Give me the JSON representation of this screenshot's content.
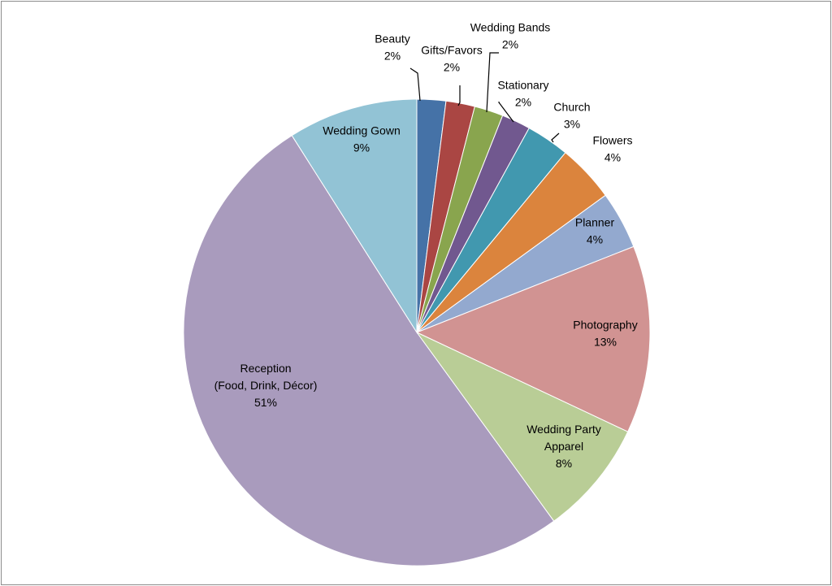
{
  "chart_data": {
    "type": "pie",
    "title": "",
    "start_angle": "12 o'clock",
    "direction": "clockwise",
    "slices": [
      {
        "name": "Beauty",
        "label_lines": [
          "Beauty",
          "2%"
        ],
        "value": 2,
        "percent_label": "2%",
        "color": "#4572a7"
      },
      {
        "name": "Gifts/Favors",
        "label_lines": [
          "Gifts/Favors",
          "2%"
        ],
        "value": 2,
        "percent_label": "2%",
        "color": "#aa4643"
      },
      {
        "name": "Wedding Bands",
        "label_lines": [
          "Wedding Bands",
          "2%"
        ],
        "value": 2,
        "percent_label": "2%",
        "color": "#89a54e"
      },
      {
        "name": "Stationary",
        "label_lines": [
          "Stationary",
          "2%"
        ],
        "value": 2,
        "percent_label": "2%",
        "color": "#71588f"
      },
      {
        "name": "Church",
        "label_lines": [
          "Church",
          "3%"
        ],
        "value": 3,
        "percent_label": "3%",
        "color": "#4198af"
      },
      {
        "name": "Flowers",
        "label_lines": [
          "Flowers",
          "4%"
        ],
        "value": 4,
        "percent_label": "4%",
        "color": "#db843d"
      },
      {
        "name": "Planner",
        "label_lines": [
          "Planner",
          "4%"
        ],
        "value": 4,
        "percent_label": "4%",
        "color": "#93a9cf"
      },
      {
        "name": "Photography",
        "label_lines": [
          "Photography",
          "13%"
        ],
        "value": 13,
        "percent_label": "13%",
        "color": "#d19392"
      },
      {
        "name": "Wedding Party Apparel",
        "label_lines": [
          "Wedding Party",
          "Apparel",
          "8%"
        ],
        "value": 8,
        "percent_label": "8%",
        "color": "#b9cd96"
      },
      {
        "name": "Reception (Food, Drink, Décor)",
        "label_lines": [
          "Reception",
          "(Food, Drink, Décor)",
          "51%"
        ],
        "value": 51,
        "percent_label": "51%",
        "color": "#a99bbd"
      },
      {
        "name": "Wedding Gown",
        "label_lines": [
          "Wedding Gown",
          "9%"
        ],
        "value": 9,
        "percent_label": "9%",
        "color": "#92c3d5"
      }
    ]
  }
}
